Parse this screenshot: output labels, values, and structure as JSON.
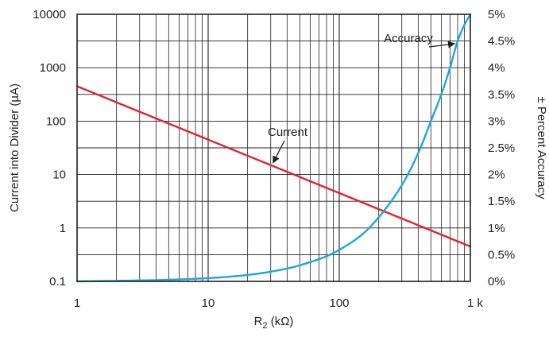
{
  "chart_data": {
    "type": "line",
    "xlabel": {
      "main": "R",
      "sub": "2",
      "rest": " (kΩ)"
    },
    "ylabel_left": "Current into Divider (µA)",
    "ylabel_right": "± Percent Accuracy",
    "x_scale": "log",
    "y_left_scale": "log",
    "y_right_scale": "linear",
    "xlim": [
      1,
      1000
    ],
    "ylim_left": [
      0.1,
      10000
    ],
    "ylim_right": [
      0,
      5
    ],
    "x_ticks": [
      {
        "value": 1,
        "label": "1"
      },
      {
        "value": 10,
        "label": "10"
      },
      {
        "value": 100,
        "label": "100"
      },
      {
        "value": 1000,
        "label": "1 k"
      }
    ],
    "y_left_ticks": [
      {
        "value": 0.1,
        "label": "0.1"
      },
      {
        "value": 1,
        "label": "1"
      },
      {
        "value": 10,
        "label": "10"
      },
      {
        "value": 100,
        "label": "100"
      },
      {
        "value": 1000,
        "label": "1000"
      },
      {
        "value": 10000,
        "label": "10000"
      }
    ],
    "y_right_ticks": [
      {
        "value": 0,
        "label": "0%"
      },
      {
        "value": 0.5,
        "label": "0.5%"
      },
      {
        "value": 1,
        "label": "1%"
      },
      {
        "value": 1.5,
        "label": "1.5%"
      },
      {
        "value": 2,
        "label": "2%"
      },
      {
        "value": 2.5,
        "label": "2.5%"
      },
      {
        "value": 3,
        "label": "3%"
      },
      {
        "value": 3.5,
        "label": "3.5%"
      },
      {
        "value": 4,
        "label": "4%"
      },
      {
        "value": 4.5,
        "label": "4.5%"
      },
      {
        "value": 5,
        "label": "5%"
      }
    ],
    "grid": true,
    "series": [
      {
        "name": "Current",
        "axis": "left",
        "color": "#e0242b",
        "x": [
          1,
          2,
          5,
          10,
          20,
          50,
          100,
          200,
          500,
          1000
        ],
        "y": [
          450,
          225,
          90,
          45,
          22.5,
          9,
          4.5,
          2.25,
          0.9,
          0.45
        ]
      },
      {
        "name": "Accuracy",
        "axis": "right",
        "color": "#1ba7dc",
        "x": [
          1,
          2,
          5,
          10,
          20,
          40,
          60,
          80,
          100,
          150,
          200,
          300,
          400,
          500,
          600,
          700,
          800,
          900,
          1000
        ],
        "y": [
          0.0,
          0.01,
          0.03,
          0.06,
          0.12,
          0.24,
          0.36,
          0.47,
          0.59,
          0.88,
          1.2,
          1.8,
          2.4,
          3.0,
          3.5,
          4.0,
          4.5,
          4.8,
          5.0
        ]
      }
    ],
    "annotations": [
      {
        "text": "Current",
        "series": "Current",
        "arrow_to_x": 30
      },
      {
        "text": "Accuracy",
        "series": "Accuracy",
        "arrow_to_x": 780
      }
    ]
  }
}
